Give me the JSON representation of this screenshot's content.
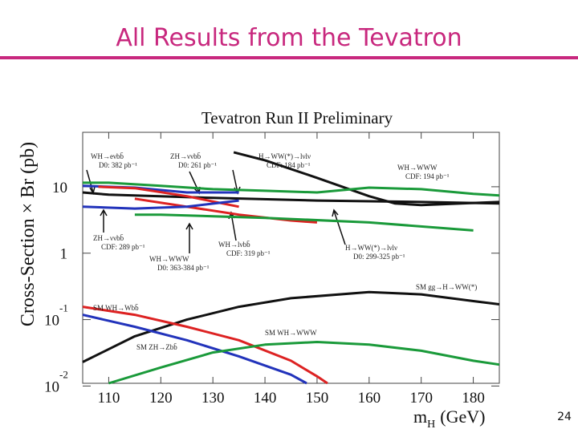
{
  "slide_title": "All Results from the Tevatron",
  "page_number": "24",
  "chart_data": {
    "type": "line",
    "title": "Tevatron Run II Preliminary",
    "x_label": "m",
    "x_label_sub": "H",
    "x_label_unit": "(GeV)",
    "y_label": "Cross-Section × Br (pb)",
    "log_y": true,
    "xlim": [
      105,
      185
    ],
    "xticks": [
      110,
      120,
      130,
      140,
      150,
      160,
      170,
      180
    ],
    "ylim": [
      0.011,
      66
    ],
    "yticks": [
      {
        "value": 0.01,
        "label": "10",
        "exponent": "-2"
      },
      {
        "value": 0.1,
        "label": "10",
        "exponent": "-1"
      },
      1,
      10
    ],
    "series": [
      {
        "color": "#111111",
        "x": [
          134,
          140,
          150,
          160,
          165,
          170,
          180,
          185
        ],
        "values": [
          33,
          25,
          13.6,
          7.2,
          5.6,
          5.3,
          5.7,
          5.9
        ]
      },
      {
        "color": "#111111",
        "x": [
          105,
          110,
          130,
          150,
          170,
          185
        ],
        "values": [
          8.2,
          7.6,
          6.8,
          6.2,
          5.9,
          5.6
        ]
      },
      {
        "color": "#1a9a3a",
        "x": [
          105,
          110,
          120,
          130,
          140,
          150,
          160,
          170,
          180,
          185
        ],
        "values": [
          11.5,
          11.5,
          10.3,
          9.2,
          8.7,
          8.2,
          9.7,
          9.2,
          7.8,
          7.4
        ]
      },
      {
        "color": "#2233bb",
        "x": [
          105,
          115,
          125,
          135
        ],
        "values": [
          10.3,
          9.7,
          8.2,
          8.2
        ]
      },
      {
        "color": "#dd2222",
        "x": [
          108,
          115,
          125,
          135
        ],
        "values": [
          10,
          9.5,
          7.2,
          5.0
        ]
      },
      {
        "color": "#dd2222",
        "x": [
          115,
          125,
          135,
          145,
          150
        ],
        "values": [
          6.6,
          5.0,
          3.8,
          3.1,
          2.9
        ]
      },
      {
        "color": "#2233bb",
        "x": [
          105,
          115,
          125,
          135
        ],
        "values": [
          5.0,
          4.7,
          5.0,
          6.2
        ]
      },
      {
        "color": "#1a9a3a",
        "x": [
          115,
          120,
          140,
          160,
          180
        ],
        "values": [
          3.8,
          3.8,
          3.4,
          2.9,
          2.2
        ]
      },
      {
        "color": "#111111",
        "x": [
          105,
          115,
          125,
          135,
          145,
          160,
          170,
          180,
          185
        ],
        "values": [
          0.023,
          0.056,
          0.1,
          0.156,
          0.21,
          0.26,
          0.24,
          0.19,
          0.17
        ]
      },
      {
        "color": "#dd2222",
        "x": [
          105,
          115,
          125,
          135,
          145,
          150,
          152
        ],
        "values": [
          0.156,
          0.118,
          0.078,
          0.049,
          0.024,
          0.014,
          0.011
        ]
      },
      {
        "color": "#2233bb",
        "x": [
          105,
          115,
          125,
          135,
          145,
          148
        ],
        "values": [
          0.118,
          0.078,
          0.049,
          0.028,
          0.0148,
          0.011
        ]
      },
      {
        "color": "#1a9a3a",
        "x": [
          110,
          120,
          130,
          140,
          150,
          160,
          170,
          180,
          185
        ],
        "values": [
          0.011,
          0.019,
          0.032,
          0.042,
          0.046,
          0.042,
          0.034,
          0.024,
          0.021
        ]
      }
    ],
    "annotations": [
      {
        "lines": [
          "WH→eνbb̄",
          "D0: 382 pb⁻¹"
        ]
      },
      {
        "lines": [
          "ZH→ννbb̄",
          "D0: 261 pb⁻¹"
        ]
      },
      {
        "lines": [
          "H→WW(*)→lνlν",
          "CDF: 184 pb⁻¹"
        ]
      },
      {
        "lines": [
          "WH→WWW",
          "CDF: 194 pb⁻¹"
        ]
      },
      {
        "lines": [
          "ZH→ννbb̄",
          "CDF: 289 pb⁻¹"
        ]
      },
      {
        "lines": [
          "WH→WWW",
          "D0: 363-384 pb⁻¹"
        ]
      },
      {
        "lines": [
          "WH→lνbb̄",
          "CDF: 319 pb⁻¹"
        ]
      },
      {
        "lines": [
          "H→WW(*)→lνlν",
          "D0: 299-325 pb⁻¹"
        ]
      },
      {
        "lines": [
          "SM gg→H→WW(*)"
        ]
      },
      {
        "lines": [
          "SM WH→Wbb̄"
        ]
      },
      {
        "lines": [
          "SM WH→WWW"
        ]
      },
      {
        "lines": [
          "SM ZH→Zbb̄"
        ]
      }
    ]
  }
}
